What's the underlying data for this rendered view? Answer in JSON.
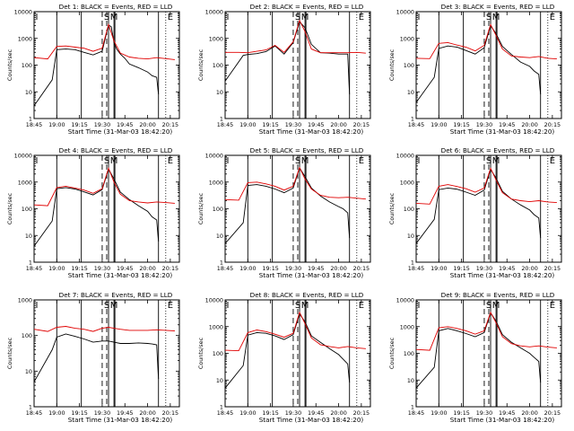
{
  "chart_data": [
    {
      "type": "line",
      "title": "Det 1: BLACK = Events, RED = LLD",
      "xlabel": "Start Time (31-Mar-03 18:42:20)",
      "ylabel": "Counts/sec",
      "yscale": "log",
      "ylim": [
        1,
        10000
      ],
      "xticks": [
        "18:45",
        "19:00",
        "19:15",
        "19:30",
        "19:45",
        "20:00",
        "20:15"
      ],
      "yticks": [
        "1",
        "10",
        "100",
        "1000",
        "10000"
      ],
      "markers": [
        "I",
        "S",
        "M",
        "E"
      ],
      "series": [
        {
          "name": "Events",
          "color": "#000000",
          "x": [
            18.75,
            18.95,
            19.0,
            19.1,
            19.2,
            19.3,
            19.4,
            19.5,
            19.57,
            19.6,
            19.63,
            19.66,
            19.7,
            19.75,
            19.8,
            19.9,
            20.0,
            20.05,
            20.1,
            20.12
          ],
          "values": [
            3,
            28,
            380,
            400,
            380,
            300,
            240,
            330,
            3200,
            2700,
            700,
            400,
            260,
            180,
            110,
            80,
            55,
            40,
            35,
            8
          ]
        },
        {
          "name": "LLD",
          "color": "#e00000",
          "x": [
            18.75,
            18.9,
            19.0,
            19.1,
            19.2,
            19.3,
            19.4,
            19.5,
            19.57,
            19.63,
            19.7,
            19.8,
            19.9,
            20.0,
            20.1,
            20.2,
            20.3
          ],
          "values": [
            190,
            170,
            500,
            520,
            470,
            430,
            330,
            430,
            3300,
            800,
            280,
            200,
            180,
            170,
            190,
            175,
            160
          ]
        }
      ]
    },
    {
      "type": "line",
      "title": "Det 2: BLACK = Events, RED = LLD",
      "xlabel": "Start Time (31-Mar-03 18:42:20)",
      "ylabel": "Counts/sec",
      "yscale": "log",
      "ylim": [
        1,
        10000
      ],
      "xticks": [
        "18:45",
        "19:00",
        "19:15",
        "19:30",
        "19:45",
        "20:00",
        "20:15"
      ],
      "yticks": [
        "1",
        "10",
        "100",
        "1000",
        "10000"
      ],
      "markers": [
        "I",
        "S",
        "M",
        "E"
      ],
      "series": [
        {
          "name": "Events",
          "color": "#000000",
          "x": [
            18.75,
            18.95,
            19.0,
            19.1,
            19.2,
            19.3,
            19.4,
            19.5,
            19.57,
            19.63,
            19.7,
            19.8,
            19.9,
            20.0,
            20.1,
            20.12
          ],
          "values": [
            25,
            230,
            250,
            270,
            320,
            520,
            260,
            700,
            4200,
            2500,
            600,
            290,
            280,
            260,
            260,
            8
          ]
        },
        {
          "name": "LLD",
          "color": "#e00000",
          "x": [
            18.75,
            18.9,
            19.0,
            19.1,
            19.2,
            19.3,
            19.4,
            19.5,
            19.57,
            19.63,
            19.7,
            19.8,
            19.9,
            20.0,
            20.1,
            20.2,
            20.3
          ],
          "values": [
            300,
            300,
            290,
            330,
            370,
            550,
            300,
            750,
            4700,
            1800,
            400,
            290,
            290,
            290,
            290,
            300,
            280
          ]
        }
      ]
    },
    {
      "type": "line",
      "title": "Det 3: BLACK = Events, RED = LLD",
      "xlabel": "Start Time (31-Mar-03 18:42:20)",
      "ylabel": "Counts/sec",
      "yscale": "log",
      "ylim": [
        1,
        10000
      ],
      "xticks": [
        "18:45",
        "19:00",
        "19:15",
        "19:30",
        "19:45",
        "20:00",
        "20:15"
      ],
      "yticks": [
        "1",
        "10",
        "100",
        "1000",
        "10000"
      ],
      "markers": [
        "I",
        "S",
        "M",
        "E"
      ],
      "series": [
        {
          "name": "Events",
          "color": "#000000",
          "x": [
            18.75,
            18.95,
            19.0,
            19.1,
            19.2,
            19.3,
            19.4,
            19.5,
            19.57,
            19.63,
            19.7,
            19.8,
            19.9,
            20.0,
            20.05,
            20.1,
            20.12
          ],
          "values": [
            4,
            35,
            420,
            520,
            470,
            350,
            260,
            450,
            3000,
            1500,
            500,
            250,
            130,
            90,
            60,
            45,
            8
          ]
        },
        {
          "name": "LLD",
          "color": "#e00000",
          "x": [
            18.75,
            18.9,
            19.0,
            19.1,
            19.2,
            19.3,
            19.4,
            19.5,
            19.57,
            19.63,
            19.7,
            19.8,
            19.9,
            20.0,
            20.1,
            20.2,
            20.3
          ],
          "values": [
            180,
            175,
            650,
            700,
            560,
            470,
            340,
            550,
            3300,
            1300,
            400,
            220,
            200,
            190,
            210,
            180,
            170
          ]
        }
      ]
    },
    {
      "type": "line",
      "title": "Det 4: BLACK = Events, RED = LLD",
      "xlabel": "Start Time (31-Mar-03 18:42:20)",
      "ylabel": "Counts/sec",
      "yscale": "log",
      "ylim": [
        1,
        10000
      ],
      "xticks": [
        "18:45",
        "19:00",
        "19:15",
        "19:30",
        "19:45",
        "20:00",
        "20:15"
      ],
      "yticks": [
        "1",
        "10",
        "100",
        "1000",
        "10000"
      ],
      "markers": [
        "I",
        "S",
        "M",
        "E"
      ],
      "series": [
        {
          "name": "Events",
          "color": "#000000",
          "x": [
            18.75,
            18.95,
            19.0,
            19.1,
            19.2,
            19.3,
            19.4,
            19.5,
            19.57,
            19.63,
            19.7,
            19.8,
            19.9,
            20.0,
            20.05,
            20.1,
            20.12
          ],
          "values": [
            4,
            35,
            560,
            620,
            550,
            430,
            330,
            520,
            3100,
            1300,
            420,
            220,
            130,
            80,
            50,
            38,
            6
          ]
        },
        {
          "name": "LLD",
          "color": "#e00000",
          "x": [
            18.75,
            18.9,
            19.0,
            19.1,
            19.2,
            19.3,
            19.4,
            19.5,
            19.57,
            19.63,
            19.7,
            19.8,
            19.9,
            20.0,
            20.1,
            20.2,
            20.3
          ],
          "values": [
            140,
            130,
            620,
            700,
            600,
            500,
            380,
            560,
            3300,
            1000,
            350,
            200,
            180,
            165,
            180,
            170,
            160
          ]
        }
      ]
    },
    {
      "type": "line",
      "title": "Det 5: BLACK = Events, RED = LLD",
      "xlabel": "Start Time (31-Mar-03 18:42:20)",
      "ylabel": "Counts/sec",
      "yscale": "log",
      "ylim": [
        1,
        10000
      ],
      "xticks": [
        "18:45",
        "19:00",
        "19:15",
        "19:30",
        "19:45",
        "20:00",
        "20:15"
      ],
      "yticks": [
        "1",
        "10",
        "100",
        "1000",
        "10000"
      ],
      "markers": [
        "I",
        "S",
        "M",
        "E"
      ],
      "series": [
        {
          "name": "Events",
          "color": "#000000",
          "x": [
            18.75,
            18.95,
            19.0,
            19.1,
            19.2,
            19.3,
            19.4,
            19.5,
            19.57,
            19.63,
            19.7,
            19.8,
            19.9,
            20.0,
            20.05,
            20.1,
            20.12
          ],
          "values": [
            5,
            30,
            750,
            800,
            700,
            550,
            400,
            600,
            3400,
            1600,
            600,
            300,
            180,
            120,
            100,
            70,
            8
          ]
        },
        {
          "name": "LLD",
          "color": "#e00000",
          "x": [
            18.75,
            18.9,
            19.0,
            19.1,
            19.2,
            19.3,
            19.4,
            19.5,
            19.57,
            19.63,
            19.7,
            19.8,
            19.9,
            20.0,
            20.1,
            20.2,
            20.3
          ],
          "values": [
            220,
            210,
            950,
            1000,
            850,
            700,
            500,
            700,
            3500,
            1300,
            550,
            320,
            270,
            260,
            270,
            250,
            230
          ]
        }
      ]
    },
    {
      "type": "line",
      "title": "Det 6: BLACK = Events, RED = LLD",
      "xlabel": "Start Time (31-Mar-03 18:42:20)",
      "ylabel": "Counts/sec",
      "yscale": "log",
      "ylim": [
        1,
        10000
      ],
      "xticks": [
        "18:45",
        "19:00",
        "19:15",
        "19:30",
        "19:45",
        "20:00",
        "20:15"
      ],
      "yticks": [
        "1",
        "10",
        "100",
        "1000",
        "10000"
      ],
      "markers": [
        "I",
        "S",
        "M",
        "E"
      ],
      "series": [
        {
          "name": "Events",
          "color": "#000000",
          "x": [
            18.75,
            18.95,
            19.0,
            19.1,
            19.2,
            19.3,
            19.4,
            19.5,
            19.57,
            19.63,
            19.7,
            19.8,
            19.9,
            20.0,
            20.05,
            20.1,
            20.12
          ],
          "values": [
            5,
            40,
            520,
            600,
            540,
            420,
            320,
            500,
            3000,
            1400,
            450,
            230,
            140,
            90,
            60,
            45,
            8
          ]
        },
        {
          "name": "LLD",
          "color": "#e00000",
          "x": [
            18.75,
            18.9,
            19.0,
            19.1,
            19.2,
            19.3,
            19.4,
            19.5,
            19.57,
            19.63,
            19.7,
            19.8,
            19.9,
            20.0,
            20.1,
            20.2,
            20.3
          ],
          "values": [
            160,
            150,
            700,
            800,
            680,
            560,
            420,
            600,
            3300,
            1200,
            400,
            230,
            200,
            185,
            200,
            180,
            170
          ]
        }
      ]
    },
    {
      "type": "line",
      "title": "Det 7: BLACK = Events, RED = LLD",
      "xlabel": "Start Time (31-Mar-03 18:42:20)",
      "ylabel": "Counts/sec",
      "yscale": "log",
      "ylim": [
        1,
        1000
      ],
      "xticks": [
        "18:45",
        "19:00",
        "19:15",
        "19:30",
        "19:45",
        "20:00",
        "20:15"
      ],
      "yticks": [
        "1",
        "10",
        "100",
        "1000"
      ],
      "markers": [
        "I",
        "S",
        "M",
        "E"
      ],
      "series": [
        {
          "name": "Events",
          "color": "#000000",
          "x": [
            18.75,
            18.95,
            19.0,
            19.1,
            19.2,
            19.3,
            19.4,
            19.5,
            19.57,
            19.63,
            19.7,
            19.8,
            19.9,
            20.0,
            20.05,
            20.1,
            20.12
          ],
          "values": [
            5,
            40,
            90,
            110,
            95,
            80,
            65,
            70,
            70,
            65,
            60,
            60,
            62,
            60,
            58,
            55,
            6
          ]
        },
        {
          "name": "LLD",
          "color": "#e00000",
          "x": [
            18.75,
            18.9,
            19.0,
            19.1,
            19.2,
            19.3,
            19.4,
            19.5,
            19.57,
            19.63,
            19.7,
            19.8,
            19.9,
            20.0,
            20.1,
            20.2,
            20.3
          ],
          "values": [
            150,
            130,
            170,
            180,
            160,
            150,
            130,
            160,
            170,
            160,
            150,
            140,
            140,
            140,
            145,
            140,
            135
          ]
        }
      ]
    },
    {
      "type": "line",
      "title": "Det 8: BLACK = Events, RED = LLD",
      "xlabel": "Start Time (31-Mar-03 18:42:20)",
      "ylabel": "Counts/sec",
      "yscale": "log",
      "ylim": [
        1,
        10000
      ],
      "xticks": [
        "18:45",
        "19:00",
        "19:15",
        "19:30",
        "19:45",
        "20:00",
        "20:15"
      ],
      "yticks": [
        "1",
        "10",
        "100",
        "1000",
        "10000"
      ],
      "markers": [
        "I",
        "S",
        "M",
        "E"
      ],
      "series": [
        {
          "name": "Events",
          "color": "#000000",
          "x": [
            18.75,
            18.95,
            19.0,
            19.1,
            19.2,
            19.3,
            19.4,
            19.5,
            19.57,
            19.63,
            19.7,
            19.8,
            19.9,
            20.0,
            20.05,
            20.1,
            20.12
          ],
          "values": [
            5,
            35,
            480,
            600,
            560,
            450,
            330,
            500,
            3000,
            1500,
            450,
            260,
            150,
            90,
            60,
            40,
            8
          ]
        },
        {
          "name": "LLD",
          "color": "#e00000",
          "x": [
            18.75,
            18.9,
            19.0,
            19.1,
            19.2,
            19.3,
            19.4,
            19.5,
            19.57,
            19.63,
            19.7,
            19.8,
            19.9,
            20.0,
            20.1,
            20.2,
            20.3
          ],
          "values": [
            130,
            125,
            600,
            750,
            650,
            520,
            400,
            560,
            3400,
            1300,
            380,
            210,
            180,
            160,
            180,
            160,
            150
          ]
        }
      ]
    },
    {
      "type": "line",
      "title": "Det 9: BLACK = Events, RED = LLD",
      "xlabel": "Start Time (31-Mar-03 18:42:20)",
      "ylabel": "Counts/sec",
      "yscale": "log",
      "ylim": [
        1,
        10000
      ],
      "xticks": [
        "18:45",
        "19:00",
        "19:15",
        "19:30",
        "19:45",
        "20:00",
        "20:15"
      ],
      "yticks": [
        "1",
        "10",
        "100",
        "1000",
        "10000"
      ],
      "markers": [
        "I",
        "S",
        "M",
        "E"
      ],
      "series": [
        {
          "name": "Events",
          "color": "#000000",
          "x": [
            18.75,
            18.95,
            19.0,
            19.1,
            19.2,
            19.3,
            19.4,
            19.5,
            19.57,
            19.63,
            19.7,
            19.8,
            19.9,
            20.0,
            20.05,
            20.1,
            20.12
          ],
          "values": [
            5,
            30,
            700,
            850,
            700,
            550,
            420,
            600,
            3300,
            1600,
            500,
            260,
            160,
            100,
            70,
            50,
            8
          ]
        },
        {
          "name": "LLD",
          "color": "#e00000",
          "x": [
            18.75,
            18.9,
            19.0,
            19.1,
            19.2,
            19.3,
            19.4,
            19.5,
            19.57,
            19.63,
            19.7,
            19.8,
            19.9,
            20.0,
            20.1,
            20.2,
            20.3
          ],
          "values": [
            140,
            130,
            900,
            1000,
            850,
            700,
            520,
            700,
            3400,
            1400,
            420,
            230,
            190,
            175,
            190,
            170,
            160
          ]
        }
      ]
    }
  ],
  "panel_overlays": {
    "solid_vlines": [
      19.0,
      19.27,
      19.57,
      19.63,
      19.64,
      20.12
    ],
    "dashed_vlines": [
      19.5,
      19.55
    ],
    "dotted_vlines": [
      20.2
    ],
    "marker_positions": [
      18.78,
      19.55,
      19.63,
      20.25
    ]
  }
}
